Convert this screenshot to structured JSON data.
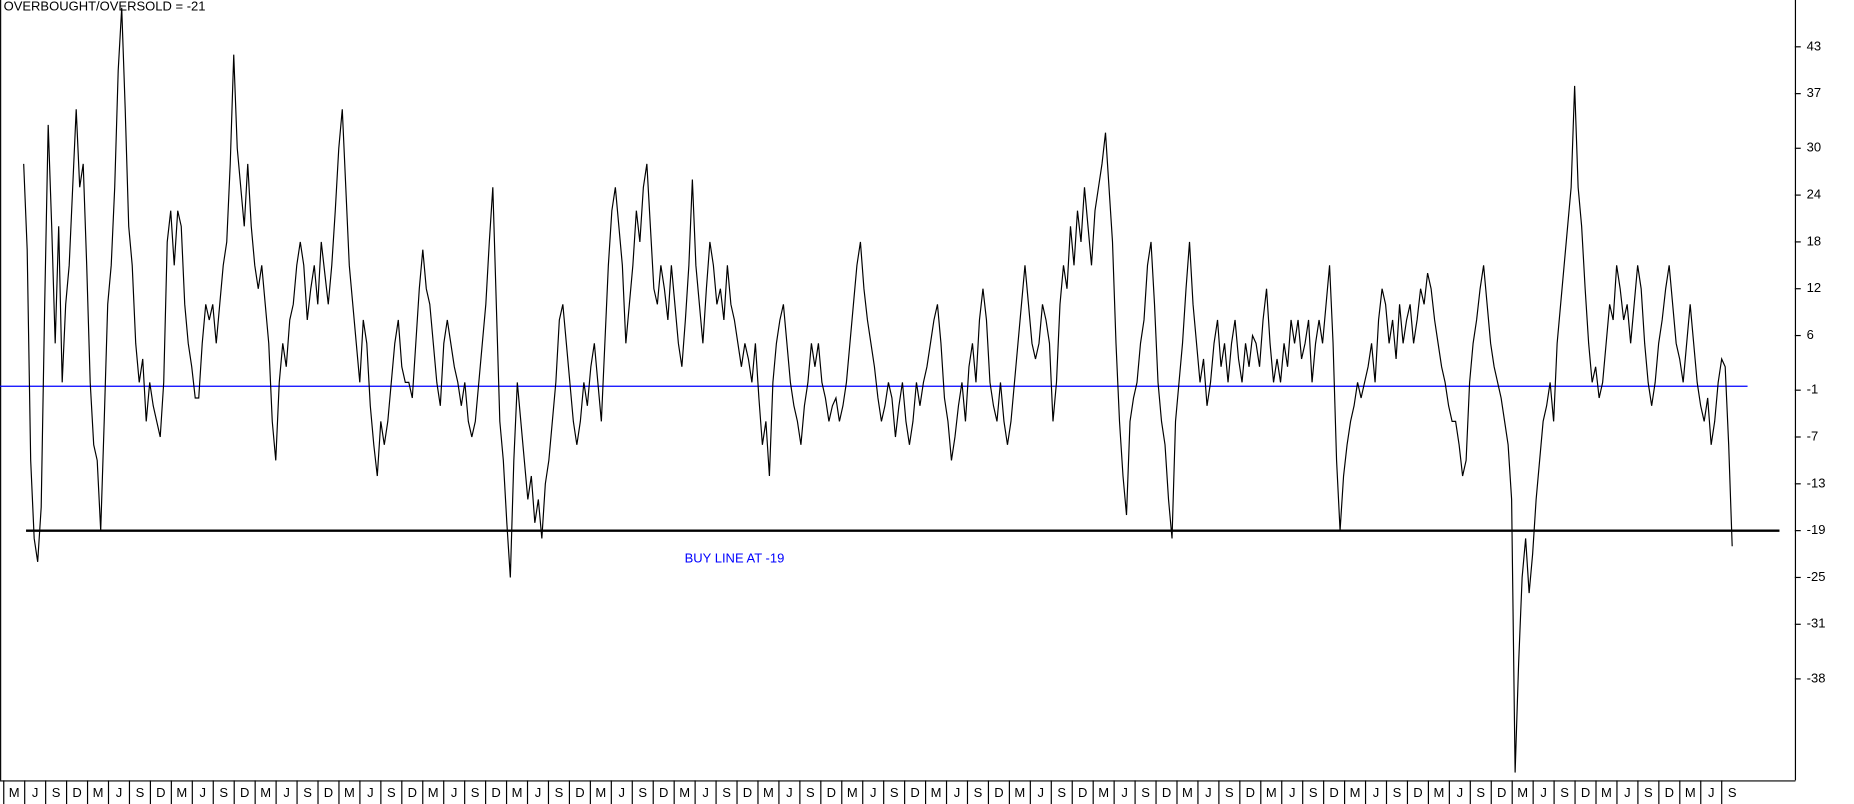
{
  "chart_data": {
    "type": "line",
    "title": "OVERBOUGHT/OVERSOLD = -21",
    "annotation": "BUY LINE AT -19",
    "ylim": [
      -51,
      49
    ],
    "yticks": [
      43,
      37,
      30,
      24,
      18,
      12,
      6,
      -1,
      -7,
      -13,
      -19,
      -25,
      -31,
      -38
    ],
    "x_labels": [
      "M",
      "J",
      "S",
      "D",
      "M",
      "J",
      "S",
      "D",
      "M",
      "J",
      "S",
      "D",
      "M",
      "J",
      "S",
      "D",
      "M",
      "J",
      "S",
      "D",
      "M",
      "J",
      "S",
      "D",
      "M",
      "J",
      "S",
      "D",
      "M",
      "J",
      "S",
      "D",
      "M",
      "J",
      "S",
      "D",
      "M",
      "J",
      "S",
      "D",
      "M",
      "J",
      "S",
      "D",
      "M",
      "J",
      "S",
      "D",
      "M",
      "J",
      "S",
      "D",
      "M",
      "J",
      "S",
      "D",
      "M",
      "J",
      "S",
      "D",
      "M",
      "J",
      "S",
      "D",
      "M",
      "J",
      "S",
      "D",
      "M",
      "J",
      "S",
      "D",
      "M",
      "J",
      "S",
      "D",
      "M",
      "J",
      "S",
      "D",
      "M",
      "J",
      "S"
    ],
    "series": [
      {
        "color": "#000000",
        "values": [
          28,
          17,
          -10,
          -20,
          -23,
          -16,
          10,
          33,
          20,
          5,
          20,
          0,
          10,
          15,
          25,
          35,
          25,
          28,
          15,
          0,
          -8,
          -10,
          -19,
          -5,
          10,
          15,
          25,
          40,
          48,
          35,
          20,
          15,
          5,
          0,
          3,
          -5,
          0,
          -3,
          -5,
          -7,
          0,
          18,
          22,
          15,
          22,
          20,
          10,
          5,
          2,
          -2,
          -2,
          5,
          10,
          8,
          10,
          5,
          10,
          15,
          18,
          28,
          42,
          30,
          25,
          20,
          28,
          20,
          15,
          12,
          15,
          10,
          5,
          -5,
          -10,
          0,
          5,
          2,
          8,
          10,
          15,
          18,
          15,
          8,
          12,
          15,
          10,
          18,
          14,
          10,
          15,
          22,
          30,
          35,
          25,
          15,
          10,
          5,
          0,
          8,
          5,
          -3,
          -8,
          -12,
          -5,
          -8,
          -5,
          0,
          5,
          8,
          2,
          0,
          0,
          -2,
          5,
          12,
          17,
          12,
          10,
          5,
          0,
          -3,
          5,
          8,
          5,
          2,
          0,
          -3,
          0,
          -5,
          -7,
          -5,
          0,
          5,
          10,
          18,
          25,
          10,
          -5,
          -10,
          -18,
          -25,
          -10,
          0,
          -5,
          -10,
          -15,
          -12,
          -18,
          -15,
          -20,
          -13,
          -10,
          -5,
          0,
          8,
          10,
          5,
          0,
          -5,
          -8,
          -5,
          0,
          -3,
          2,
          5,
          0,
          -5,
          5,
          15,
          22,
          25,
          20,
          15,
          5,
          10,
          15,
          22,
          18,
          25,
          28,
          20,
          12,
          10,
          15,
          12,
          8,
          15,
          10,
          5,
          2,
          8,
          15,
          26,
          15,
          10,
          5,
          12,
          18,
          15,
          10,
          12,
          8,
          15,
          10,
          8,
          5,
          2,
          5,
          3,
          0,
          5,
          -2,
          -8,
          -5,
          -12,
          0,
          5,
          8,
          10,
          5,
          0,
          -3,
          -5,
          -8,
          -3,
          0,
          5,
          2,
          5,
          0,
          -2,
          -5,
          -3,
          -2,
          -5,
          -3,
          0,
          5,
          10,
          15,
          18,
          12,
          8,
          5,
          2,
          -2,
          -5,
          -3,
          0,
          -2,
          -7,
          -3,
          0,
          -5,
          -8,
          -5,
          0,
          -3,
          0,
          2,
          5,
          8,
          10,
          5,
          -2,
          -5,
          -10,
          -7,
          -3,
          0,
          -5,
          2,
          5,
          0,
          8,
          12,
          8,
          0,
          -3,
          -5,
          0,
          -5,
          -8,
          -5,
          0,
          5,
          10,
          15,
          10,
          5,
          3,
          5,
          10,
          8,
          5,
          -5,
          0,
          10,
          15,
          12,
          20,
          15,
          22,
          18,
          25,
          20,
          15,
          22,
          25,
          28,
          32,
          25,
          18,
          5,
          -5,
          -12,
          -17,
          -5,
          -2,
          0,
          5,
          8,
          15,
          18,
          10,
          0,
          -5,
          -8,
          -15,
          -20,
          -5,
          0,
          5,
          12,
          18,
          10,
          5,
          0,
          3,
          -3,
          0,
          5,
          8,
          2,
          5,
          0,
          5,
          8,
          3,
          0,
          5,
          2,
          6,
          5,
          2,
          8,
          12,
          5,
          0,
          3,
          0,
          5,
          2,
          8,
          5,
          8,
          3,
          5,
          8,
          0,
          5,
          8,
          5,
          10,
          15,
          5,
          -10,
          -19,
          -12,
          -8,
          -5,
          -3,
          0,
          -2,
          0,
          2,
          5,
          0,
          8,
          12,
          10,
          5,
          8,
          3,
          10,
          5,
          8,
          10,
          5,
          8,
          12,
          10,
          14,
          12,
          8,
          5,
          2,
          0,
          -3,
          -5,
          -5,
          -8,
          -12,
          -10,
          0,
          5,
          8,
          12,
          15,
          10,
          5,
          2,
          0,
          -2,
          -5,
          -8,
          -15,
          -50,
          -36,
          -25,
          -20,
          -27,
          -22,
          -15,
          -10,
          -5,
          -3,
          0,
          -5,
          5,
          10,
          15,
          20,
          25,
          38,
          25,
          20,
          12,
          5,
          0,
          2,
          -2,
          0,
          5,
          10,
          8,
          15,
          12,
          8,
          10,
          5,
          10,
          15,
          12,
          5,
          0,
          -3,
          0,
          5,
          8,
          12,
          15,
          10,
          5,
          3,
          0,
          5,
          10,
          5,
          0,
          -3,
          -5,
          -2,
          -8,
          -5,
          0,
          3,
          2,
          -8,
          -21
        ]
      }
    ],
    "reference_lines": [
      {
        "value": -0.5,
        "color": "#0000ff"
      },
      {
        "value": -19,
        "color": "#000000"
      }
    ]
  }
}
